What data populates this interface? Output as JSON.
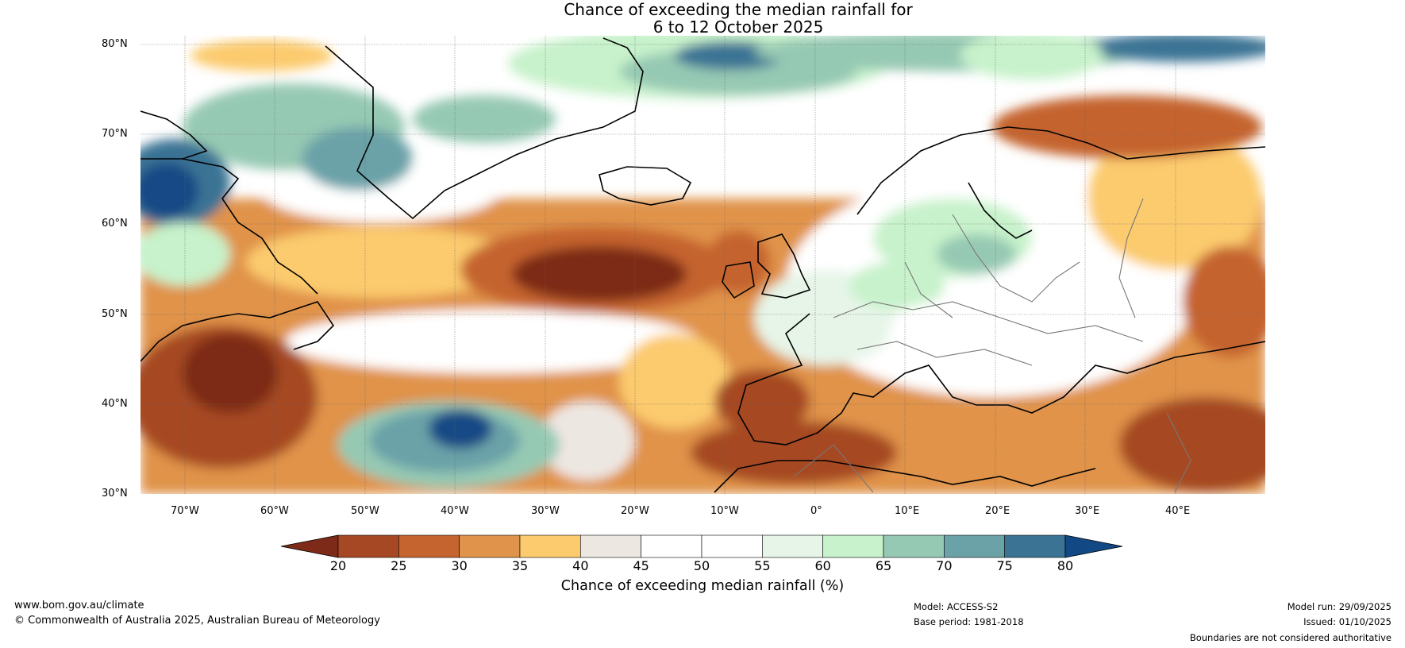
{
  "title": {
    "line1": "Chance of exceeding the median rainfall for",
    "line2": "6 to 12 October 2025"
  },
  "map": {
    "lat_ticks": [
      "80°N",
      "70°N",
      "60°N",
      "50°N",
      "40°N",
      "30°N"
    ],
    "lon_ticks": [
      "70°W",
      "60°W",
      "50°W",
      "40°W",
      "30°W",
      "20°W",
      "10°W",
      "0°",
      "10°E",
      "20°E",
      "30°E",
      "40°E"
    ]
  },
  "colorbar": {
    "label": "Chance of exceeding median rainfall (%)",
    "ticks": [
      "20",
      "25",
      "30",
      "35",
      "40",
      "45",
      "50",
      "55",
      "60",
      "65",
      "70",
      "75",
      "80"
    ],
    "colors": [
      "#7d2a18",
      "#a64823",
      "#c5642f",
      "#e0934a",
      "#fccb6e",
      "#ede7e2",
      "#ffffff",
      "#ffffff",
      "#e6f5e8",
      "#c7f2cb",
      "#96c9b3",
      "#6aa2a8",
      "#3b7394",
      "#124985"
    ]
  },
  "footer": {
    "website": "www.bom.gov.au/climate",
    "copyright": "© Commonwealth of Australia 2025, Australian Bureau of Meteorology",
    "model": "Model: ACCESS-S2",
    "base_period": "Base period: 1981-2018",
    "model_run": "Model run: 29/09/2025",
    "issued": "Issued: 01/10/2025",
    "disclaimer": "Boundaries are not considered authoritative"
  }
}
